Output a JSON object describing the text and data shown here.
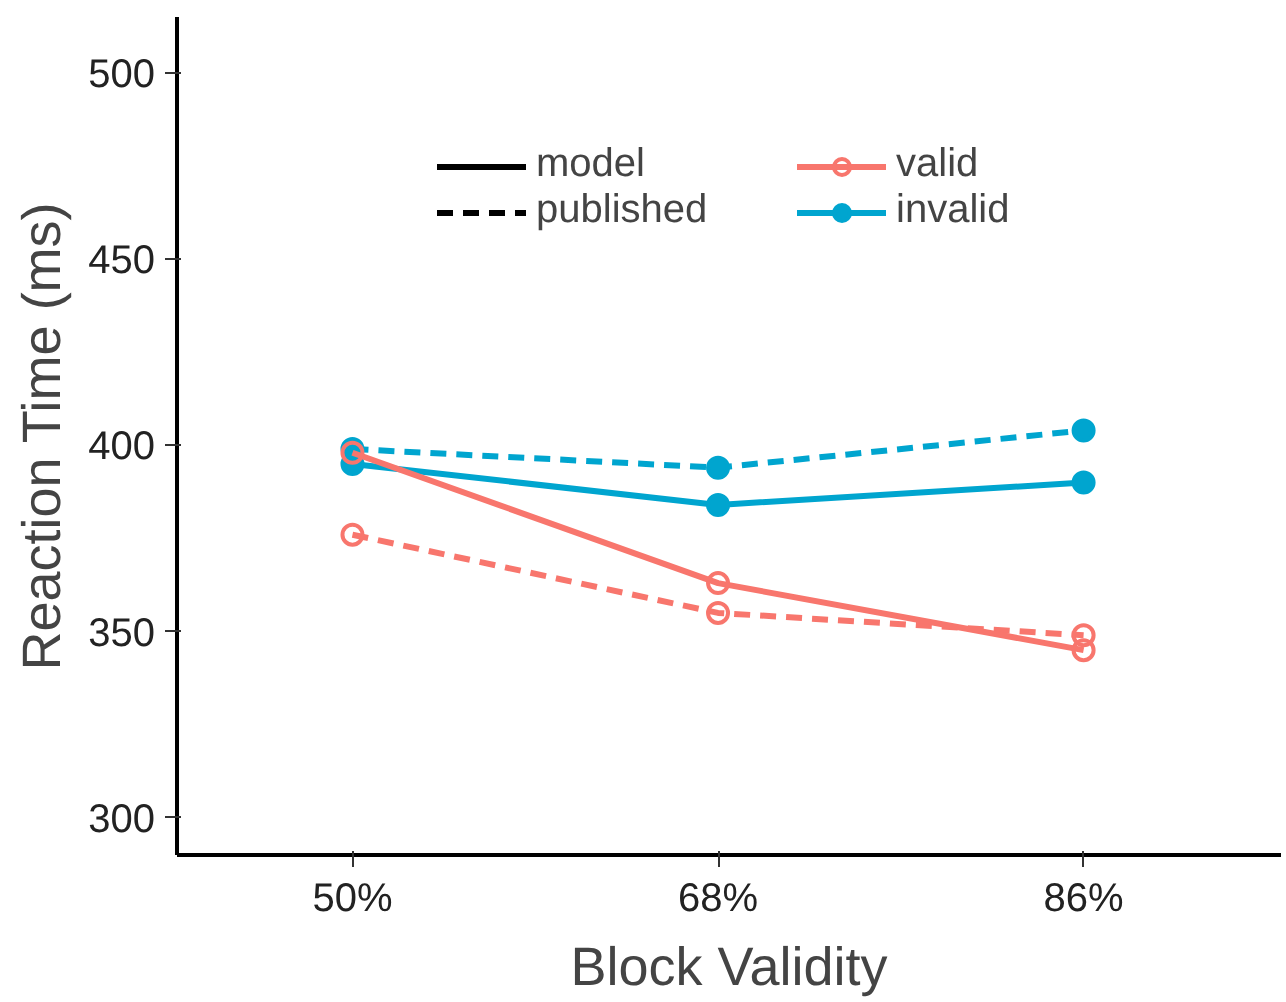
{
  "chart_data": {
    "type": "line",
    "xlabel": "Block Validity",
    "ylabel": "Reaction Time (ms)",
    "categories": [
      "50%",
      "68%",
      "86%"
    ],
    "ylim": [
      290,
      515
    ],
    "yticks": [
      300,
      350,
      400,
      450,
      500
    ],
    "grid": false,
    "legend": "top",
    "marker": "circle",
    "annotations": [
      "model",
      "published"
    ],
    "series": [
      {
        "name": "valid",
        "color": "#f8766d",
        "values": [
          398,
          363,
          345
        ],
        "line_style": "solid"
      },
      {
        "color": "#f8766d",
        "values": [
          376,
          355,
          349
        ],
        "line_style": "dashed"
      },
      {
        "name": "invalid",
        "color": "#00a5cf",
        "values": [
          395,
          384,
          390
        ],
        "line_style": "solid"
      },
      {
        "color": "#00a5cf",
        "values": [
          399,
          394,
          404
        ],
        "line_style": "dashed"
      }
    ]
  }
}
